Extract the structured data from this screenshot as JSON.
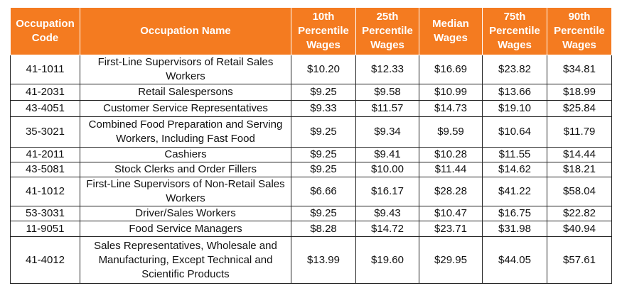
{
  "table": {
    "headers": [
      "Occupation Code",
      "Occupation Name",
      "10th Percentile Wages",
      "25th Percentile Wages",
      "Median Wages",
      "75th Percentile Wages",
      "90th Percentile Wages"
    ],
    "rows": [
      [
        "41-1011",
        "First-Line Supervisors of Retail Sales Workers",
        "$10.20",
        "$12.33",
        "$16.69",
        "$23.82",
        "$34.81"
      ],
      [
        "41-2031",
        "Retail Salespersons",
        "$9.25",
        "$9.58",
        "$10.99",
        "$13.66",
        "$18.99"
      ],
      [
        "43-4051",
        "Customer Service Representatives",
        "$9.33",
        "$11.57",
        "$14.73",
        "$19.10",
        "$25.84"
      ],
      [
        "35-3021",
        "Combined Food Preparation and Serving Workers, Including Fast Food",
        "$9.25",
        "$9.34",
        "$9.59",
        "$10.64",
        "$11.79"
      ],
      [
        "41-2011",
        "Cashiers",
        "$9.25",
        "$9.41",
        "$10.28",
        "$11.55",
        "$14.44"
      ],
      [
        "43-5081",
        "Stock Clerks and Order Fillers",
        "$9.25",
        "$10.00",
        "$11.44",
        "$14.62",
        "$18.21"
      ],
      [
        "41-1012",
        "First-Line Supervisors of Non-Retail Sales Workers",
        "$6.66",
        "$16.17",
        "$28.28",
        "$41.22",
        "$58.04"
      ],
      [
        "53-3031",
        "Driver/Sales Workers",
        "$9.25",
        "$9.43",
        "$10.47",
        "$16.75",
        "$22.82"
      ],
      [
        "11-9051",
        "Food Service Managers",
        "$8.28",
        "$14.72",
        "$23.71",
        "$31.98",
        "$40.94"
      ],
      [
        "41-4012",
        "Sales Representatives, Wholesale and Manufacturing, Except Technical and Scientific Products",
        "$13.99",
        "$19.60",
        "$29.95",
        "$44.05",
        "$57.61"
      ]
    ]
  },
  "colors": {
    "header_bg": "#f47b20",
    "header_text": "#ffffff",
    "border": "#222222"
  }
}
